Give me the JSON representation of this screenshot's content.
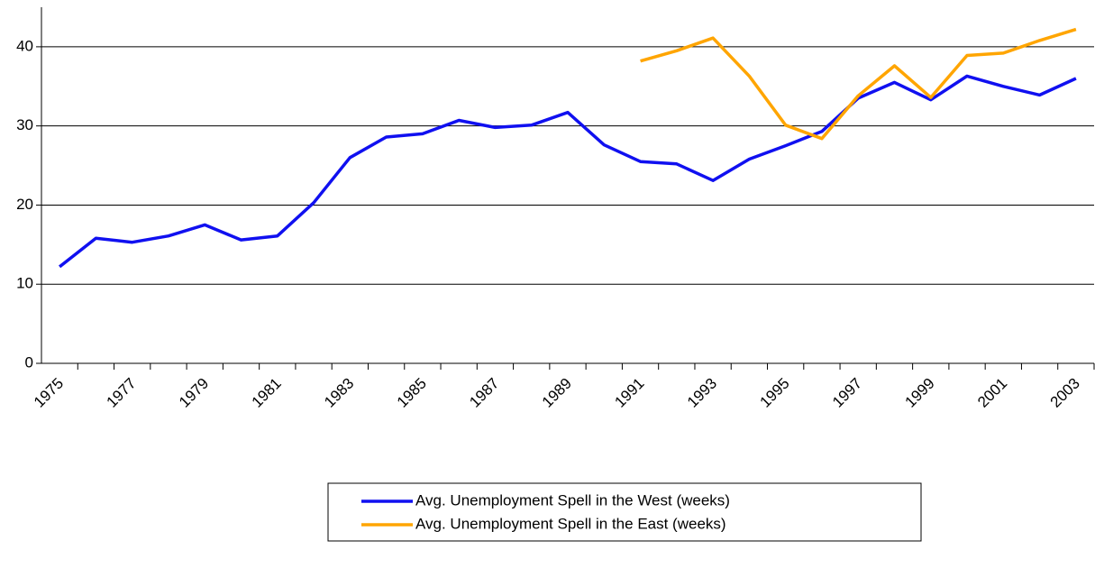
{
  "chart_data": {
    "type": "line",
    "categories": [
      "1975",
      null,
      "1977",
      null,
      "1979",
      null,
      "1981",
      null,
      "1983",
      null,
      "1985",
      null,
      "1987",
      null,
      "1989",
      null,
      "1991",
      null,
      "1993",
      null,
      "1995",
      null,
      "1997",
      null,
      "1999",
      null,
      "2001",
      null,
      "2003"
    ],
    "series": [
      {
        "name": "Avg. Unemployment Spell in the West (weeks)",
        "color": "#1010f0",
        "values": [
          12.2,
          15.8,
          15.3,
          16.1,
          17.5,
          15.6,
          16.1,
          20.3,
          26.0,
          28.6,
          29.0,
          30.7,
          29.8,
          30.1,
          31.7,
          27.6,
          25.5,
          25.2,
          23.1,
          25.8,
          27.5,
          29.3,
          33.5,
          35.5,
          33.3,
          36.3,
          35.0,
          33.9,
          36.0
        ]
      },
      {
        "name": "Avg. Unemployment Spell in the East (weeks)",
        "color": "#ffa500",
        "values": [
          null,
          null,
          null,
          null,
          null,
          null,
          null,
          null,
          null,
          null,
          null,
          null,
          null,
          null,
          null,
          null,
          38.2,
          39.5,
          41.1,
          36.3,
          30.1,
          28.4,
          33.8,
          37.6,
          33.6,
          38.9,
          39.2,
          40.8,
          42.2
        ]
      }
    ],
    "ylim": [
      0,
      45
    ],
    "yticks": [
      0,
      10,
      20,
      30,
      40
    ],
    "grid": true,
    "legend": "bottom"
  }
}
